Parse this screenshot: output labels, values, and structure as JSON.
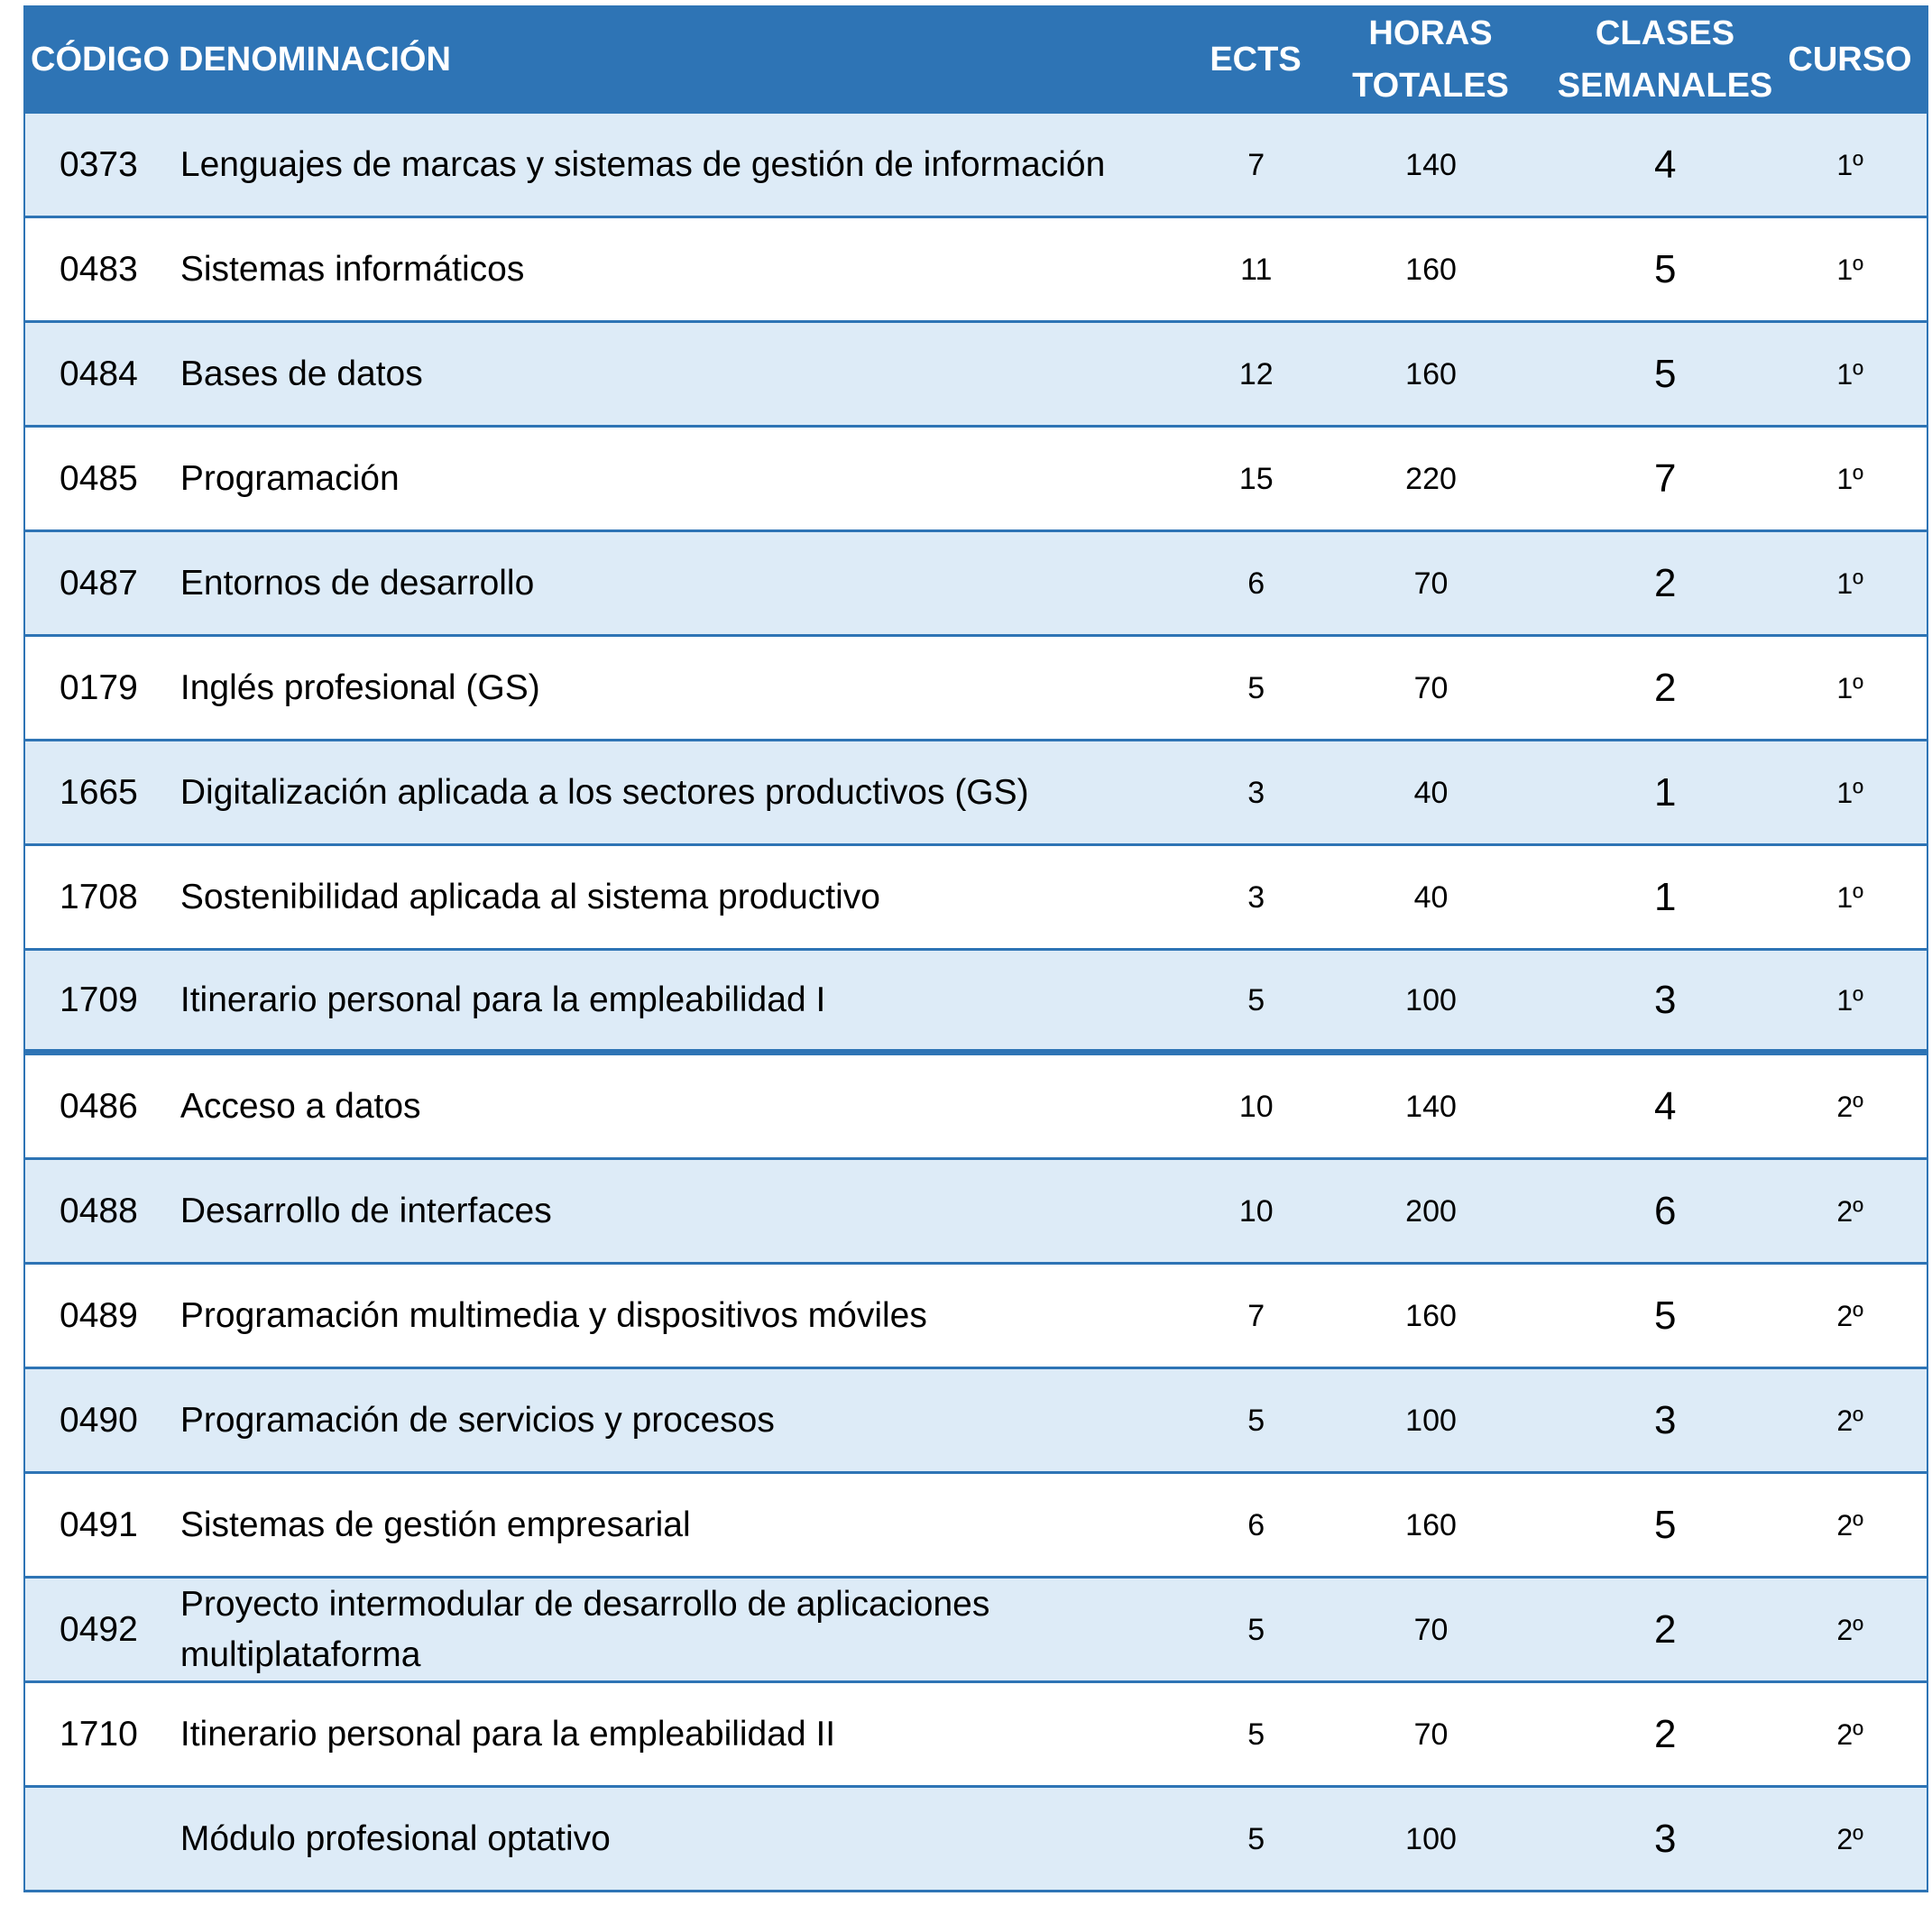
{
  "header": {
    "codigo": "CÓDIGO",
    "denominacion": "DENOMINACIÓN",
    "ects": "ECTS",
    "horas": "HORAS TOTALES",
    "clases": "CLASES SEMANALES",
    "curso": "CURSO"
  },
  "rows": [
    {
      "codigo": "0373",
      "denominacion": "Lenguajes de marcas y sistemas de gestión de información",
      "ects": "7",
      "horas": "140",
      "clases": "4",
      "curso": "1º"
    },
    {
      "codigo": "0483",
      "denominacion": "Sistemas informáticos",
      "ects": "11",
      "horas": "160",
      "clases": "5",
      "curso": "1º"
    },
    {
      "codigo": "0484",
      "denominacion": "Bases de datos",
      "ects": "12",
      "horas": "160",
      "clases": "5",
      "curso": "1º"
    },
    {
      "codigo": "0485",
      "denominacion": "Programación",
      "ects": "15",
      "horas": "220",
      "clases": "7",
      "curso": "1º"
    },
    {
      "codigo": "0487",
      "denominacion": "Entornos de desarrollo",
      "ects": "6",
      "horas": "70",
      "clases": "2",
      "curso": "1º"
    },
    {
      "codigo": "0179",
      "denominacion": "Inglés profesional (GS)",
      "ects": "5",
      "horas": "70",
      "clases": "2",
      "curso": "1º"
    },
    {
      "codigo": "1665",
      "denominacion": "Digitalización aplicada a los sectores productivos (GS)",
      "ects": "3",
      "horas": "40",
      "clases": "1",
      "curso": "1º"
    },
    {
      "codigo": "1708",
      "denominacion": "Sostenibilidad aplicada al sistema productivo",
      "ects": "3",
      "horas": "40",
      "clases": "1",
      "curso": "1º"
    },
    {
      "codigo": "1709",
      "denominacion": "Itinerario personal para la empleabilidad I",
      "ects": "5",
      "horas": "100",
      "clases": "3",
      "curso": "1º"
    },
    {
      "codigo": "0486",
      "denominacion": "Acceso a datos",
      "ects": "10",
      "horas": "140",
      "clases": "4",
      "curso": "2º"
    },
    {
      "codigo": "0488",
      "denominacion": "Desarrollo de interfaces",
      "ects": "10",
      "horas": "200",
      "clases": "6",
      "curso": "2º"
    },
    {
      "codigo": "0489",
      "denominacion": "Programación multimedia y dispositivos móviles",
      "ects": "7",
      "horas": "160",
      "clases": "5",
      "curso": "2º"
    },
    {
      "codigo": "0490",
      "denominacion": "Programación de servicios y procesos",
      "ects": "5",
      "horas": "100",
      "clases": "3",
      "curso": "2º"
    },
    {
      "codigo": "0491",
      "denominacion": "Sistemas de gestión empresarial",
      "ects": "6",
      "horas": "160",
      "clases": "5",
      "curso": "2º"
    },
    {
      "codigo": "0492",
      "denominacion": "Proyecto intermodular de desarrollo de aplicaciones multiplataforma",
      "ects": "5",
      "horas": "70",
      "clases": "2",
      "curso": "2º"
    },
    {
      "codigo": "1710",
      "denominacion": "Itinerario personal para la empleabilidad II",
      "ects": "5",
      "horas": "70",
      "clases": "2",
      "curso": "2º"
    },
    {
      "codigo": "",
      "denominacion": "Módulo profesional optativo",
      "ects": "5",
      "horas": "100",
      "clases": "3",
      "curso": "2º"
    }
  ]
}
